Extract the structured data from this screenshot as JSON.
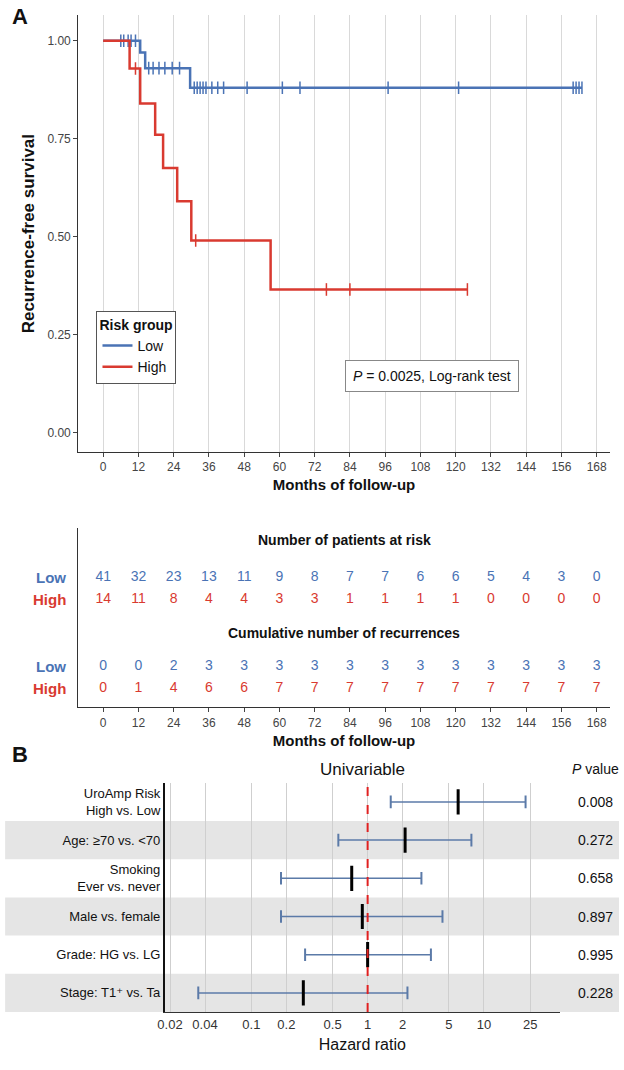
{
  "chart_data": [
    {
      "type": "step",
      "panel": "A",
      "x_label": "Months of follow-up",
      "y_label": "Recurrence-free survival",
      "xlim": [
        -8.5,
        172.5
      ],
      "xticks": [
        0,
        12,
        24,
        36,
        48,
        60,
        72,
        84,
        96,
        108,
        120,
        132,
        144,
        156,
        168
      ],
      "ylim": [
        -0.05,
        1.065
      ],
      "yticks": [
        {
          "value": 0,
          "label": "0.00"
        },
        {
          "value": 0.25,
          "label": "0.25"
        },
        {
          "value": 0.5,
          "label": "0.50"
        },
        {
          "value": 0.75,
          "label": "0.75"
        },
        {
          "value": 1,
          "label": "1.00"
        }
      ],
      "grid": "x",
      "legend": "bottom left",
      "legend_title": "Risk group",
      "annotations": [
        "P = 0.0025, Log-rank test"
      ],
      "series": [
        {
          "name": "Low",
          "color": "#4a73b5",
          "marker": "line-ns-open",
          "x": [
            0,
            12.6,
            14.3,
            29.6,
            163
          ],
          "values": [
            1,
            0.97,
            0.93,
            0.88,
            0.88
          ],
          "censored_x": [
            6,
            7,
            8.5,
            9.5,
            11,
            15.5,
            17,
            19,
            21,
            23.5,
            26,
            31,
            32,
            33,
            34,
            35,
            37,
            39,
            41,
            49,
            61,
            67,
            97,
            121,
            160,
            161,
            162,
            163
          ],
          "censored_values": [
            1,
            1,
            1,
            1,
            1,
            0.93,
            0.93,
            0.93,
            0.93,
            0.93,
            0.93,
            0.88,
            0.88,
            0.88,
            0.88,
            0.88,
            0.88,
            0.88,
            0.88,
            0.88,
            0.88,
            0.88,
            0.88,
            0.88,
            0.88,
            0.88,
            0.88,
            0.88
          ]
        },
        {
          "name": "High",
          "color": "#d93a30",
          "marker": "line-ns-open",
          "x": [
            0,
            9,
            12.6,
            17.7,
            20.4,
            25.2,
            30,
            57,
            124
          ],
          "values": [
            1,
            0.929,
            0.84,
            0.76,
            0.675,
            0.59,
            0.49,
            0.365,
            0.365
          ],
          "censored_x": [
            11,
            31.5,
            76,
            84,
            124
          ],
          "censored_values": [
            0.929,
            0.49,
            0.365,
            0.365,
            0.365
          ]
        }
      ]
    },
    {
      "type": "risk_table",
      "x_label": "Months of follow-up",
      "xlim": [
        -8.5,
        172.5
      ],
      "xticks": [
        0,
        12,
        24,
        36,
        48,
        60,
        72,
        84,
        96,
        108,
        120,
        132,
        144,
        156,
        168
      ],
      "columns": [
        0,
        12,
        24,
        36,
        48,
        60,
        72,
        84,
        96,
        108,
        120,
        132,
        144,
        156,
        168
      ],
      "tables": [
        {
          "title": "Number of patients at risk",
          "rows": [
            {
              "name": "Low",
              "color": "#4a73b5",
              "values": [
                41,
                32,
                23,
                13,
                11,
                9,
                8,
                7,
                7,
                6,
                6,
                5,
                4,
                3,
                0
              ]
            },
            {
              "name": "High",
              "color": "#d93a30",
              "values": [
                14,
                11,
                8,
                4,
                4,
                3,
                3,
                1,
                1,
                1,
                1,
                0,
                0,
                0,
                0
              ]
            }
          ]
        },
        {
          "title": "Cumulative number of recurrences",
          "rows": [
            {
              "name": "Low",
              "color": "#4a73b5",
              "values": [
                0,
                0,
                2,
                3,
                3,
                3,
                3,
                3,
                3,
                3,
                3,
                3,
                3,
                3,
                3
              ]
            },
            {
              "name": "High",
              "color": "#d93a30",
              "values": [
                0,
                1,
                4,
                6,
                6,
                7,
                7,
                7,
                7,
                7,
                7,
                7,
                7,
                7,
                7
              ]
            }
          ]
        }
      ]
    },
    {
      "type": "forest",
      "panel": "B",
      "title": "Univariable",
      "x_label": "Hazard ratio",
      "log": "x",
      "grid": "x",
      "xlim": [
        0.018,
        45
      ],
      "xticks": [
        0.02,
        0.04,
        0.1,
        0.2,
        0.5,
        1,
        2,
        5,
        10,
        25
      ],
      "reference": 1,
      "categories": [
        "UroAmp Risk\nHigh vs. Low",
        "Age: ≥70 vs. <70",
        "Smoking\nEver vs. never",
        "Male vs. female",
        "Grade: HG vs. LG",
        "Stage: T1⁺ vs. Ta"
      ],
      "values": [
        6.0,
        2.1,
        0.73,
        0.9,
        1.0,
        0.28
      ],
      "ci_low": [
        1.58,
        0.56,
        0.18,
        0.18,
        0.29,
        0.035
      ],
      "ci_high": [
        22.8,
        7.8,
        2.9,
        4.4,
        3.5,
        2.2
      ],
      "p_value_label": "P value",
      "p_values": [
        "0.008",
        "0.272",
        "0.658",
        "0.897",
        "0.995",
        "0.228"
      ]
    }
  ]
}
